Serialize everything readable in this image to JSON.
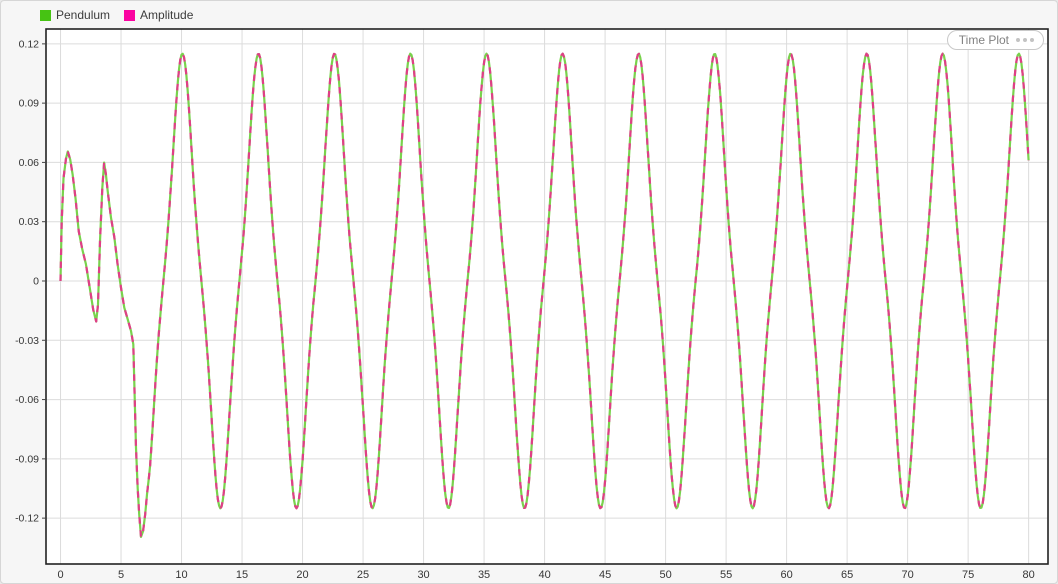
{
  "toolbar": {
    "button_label": "Time Plot"
  },
  "chart_data": {
    "type": "line",
    "title": "",
    "xlabel": "",
    "ylabel": "",
    "grid": true,
    "legend_position": "top-left",
    "xlim": [
      -1.2,
      81.6
    ],
    "ylim": [
      -0.1432,
      0.1275
    ],
    "xticks": [
      {
        "value": 0,
        "label": "0"
      },
      {
        "value": 5,
        "label": "5"
      },
      {
        "value": 10,
        "label": "10"
      },
      {
        "value": 15,
        "label": "15"
      },
      {
        "value": 20,
        "label": "20"
      },
      {
        "value": 25,
        "label": "25"
      },
      {
        "value": 30,
        "label": "30"
      },
      {
        "value": 35,
        "label": "35"
      },
      {
        "value": 40,
        "label": "40"
      },
      {
        "value": 45,
        "label": "45"
      },
      {
        "value": 50,
        "label": "50"
      },
      {
        "value": 55,
        "label": "55"
      },
      {
        "value": 60,
        "label": "60"
      },
      {
        "value": 65,
        "label": "65"
      },
      {
        "value": 70,
        "label": "70"
      },
      {
        "value": 75,
        "label": "75"
      },
      {
        "value": 80,
        "label": "80"
      }
    ],
    "yticks": [
      {
        "value": 0.12,
        "label": "0.12"
      },
      {
        "value": 0.09,
        "label": "0.09"
      },
      {
        "value": 0.06,
        "label": "0.06"
      },
      {
        "value": 0.03,
        "label": "0.03"
      },
      {
        "value": 0,
        "label": "0"
      },
      {
        "value": -0.03,
        "label": "-0.03"
      },
      {
        "value": -0.06,
        "label": "-0.06"
      },
      {
        "value": -0.09,
        "label": "-0.09"
      },
      {
        "value": -0.12,
        "label": "-0.12"
      }
    ],
    "legend": [
      {
        "label": "Pendulum",
        "swatch_color": "#46c313"
      },
      {
        "label": "Amplitude",
        "swatch_color": "#fb03a1"
      }
    ],
    "series": [
      {
        "name": "Pendulum",
        "color": "#79d24d",
        "line_style": "solid",
        "line_width": 2.2
      },
      {
        "name": "Amplitude",
        "color": "#e03e87",
        "line_style": "dashed",
        "line_width": 2.2,
        "dash": [
          6.5,
          6.5
        ]
      }
    ],
    "signal": {
      "note": "Both series plot the identical signal: startup transient points followed by steady oscillation y=A*(sin(w*(t-p))+h3*sin(3*w*(t-p))), period ~6.28 s, peaks ~0.115, troughs ~-0.115, first deep trough -0.13 near t=6.7, first large peak at t~10.1",
      "transient_points": [
        [
          0,
          0
        ],
        [
          0.1,
          0.03
        ],
        [
          0.25,
          0.052
        ],
        [
          0.45,
          0.062
        ],
        [
          0.6,
          0.0655
        ],
        [
          0.8,
          0.0615
        ],
        [
          1.0,
          0.054
        ],
        [
          1.25,
          0.0415
        ],
        [
          1.5,
          0.0253
        ],
        [
          1.8,
          0.016
        ],
        [
          2.1,
          0.0086
        ],
        [
          2.4,
          -0.003
        ],
        [
          2.7,
          -0.0145
        ],
        [
          2.95,
          -0.0205
        ],
        [
          3.1,
          -0.012
        ],
        [
          3.26,
          0.02
        ],
        [
          3.45,
          0.047
        ],
        [
          3.6,
          0.0599
        ],
        [
          3.75,
          0.054
        ],
        [
          3.9,
          0.0455
        ],
        [
          4.17,
          0.032
        ],
        [
          4.45,
          0.0219
        ],
        [
          4.72,
          0.0084
        ],
        [
          5.0,
          -0.0034
        ],
        [
          5.27,
          -0.0135
        ],
        [
          5.55,
          -0.0194
        ],
        [
          5.82,
          -0.0253
        ],
        [
          6.01,
          -0.032
        ],
        [
          6.13,
          -0.0591
        ],
        [
          6.24,
          -0.0844
        ],
        [
          6.38,
          -0.105
        ],
        [
          6.5,
          -0.118
        ],
        [
          6.65,
          -0.1295
        ],
        [
          6.82,
          -0.1265
        ],
        [
          7.0,
          -0.118
        ],
        [
          7.15,
          -0.108
        ],
        [
          7.3,
          -0.0995
        ]
      ],
      "steady_model": {
        "t_start": 7.4,
        "t_end": 80,
        "dt": 0.1,
        "amplitude": 0.1027,
        "harmonic3": -0.12,
        "omega": 1.0,
        "phase": 8.5
      }
    }
  },
  "plot_colors": {
    "plot_bg": "#ffffff",
    "outer_bg": "#f6f6f6",
    "grid": "#dcdcdc",
    "border": "#222222",
    "tick_text": "#363636"
  }
}
